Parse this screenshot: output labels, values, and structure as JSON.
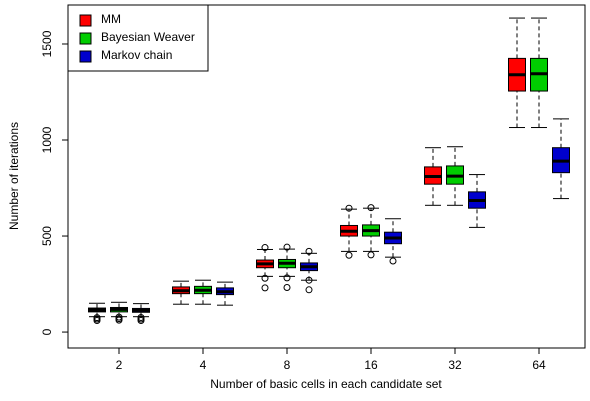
{
  "chart_data": {
    "type": "boxplot",
    "x_label": "Number of basic cells in each candidate set",
    "y_label": "Number of iterations",
    "categories": [
      "2",
      "4",
      "8",
      "16",
      "32",
      "64"
    ],
    "ylim": [
      -83,
      1703
    ],
    "yticks": [
      0,
      500,
      1000,
      1500
    ],
    "grid": false,
    "legend": "top-left",
    "series": [
      {
        "name": "MM",
        "color": "#ff0000",
        "whisker_low": [
          80,
          145,
          290,
          420,
          660,
          1065
        ],
        "q1": [
          105,
          200,
          335,
          500,
          770,
          1255
        ],
        "median": [
          115,
          215,
          355,
          525,
          810,
          1340
        ],
        "q3": [
          125,
          235,
          375,
          555,
          860,
          1425
        ],
        "whisker_high": [
          150,
          265,
          430,
          640,
          960,
          1635
        ],
        "outliers": [
          [
            60,
            68,
            75
          ],
          [],
          [
            230,
            280,
            440
          ],
          [
            400,
            645
          ],
          [],
          []
        ]
      },
      {
        "name": "Bayesian Weaver",
        "color": "#00cd00",
        "whisker_low": [
          80,
          145,
          290,
          420,
          660,
          1065
        ],
        "q1": [
          105,
          200,
          335,
          500,
          770,
          1255
        ],
        "median": [
          118,
          218,
          358,
          528,
          812,
          1345
        ],
        "q3": [
          128,
          238,
          378,
          558,
          865,
          1425
        ],
        "whisker_high": [
          155,
          270,
          432,
          645,
          965,
          1635
        ],
        "outliers": [
          [
            62,
            70,
            78
          ],
          [],
          [
            232,
            282,
            442
          ],
          [
            402,
            648
          ],
          [],
          []
        ]
      },
      {
        "name": "Markov chain",
        "color": "#0000cd",
        "whisker_low": [
          80,
          140,
          270,
          390,
          545,
          695
        ],
        "q1": [
          103,
          195,
          320,
          460,
          645,
          830
        ],
        "median": [
          113,
          210,
          340,
          490,
          685,
          890
        ],
        "q3": [
          123,
          230,
          360,
          520,
          730,
          960
        ],
        "whisker_high": [
          148,
          260,
          410,
          590,
          820,
          1110
        ],
        "outliers": [
          [
            60,
            68,
            76
          ],
          [],
          [
            220,
            270,
            420
          ],
          [
            370
          ],
          [],
          []
        ]
      }
    ]
  }
}
